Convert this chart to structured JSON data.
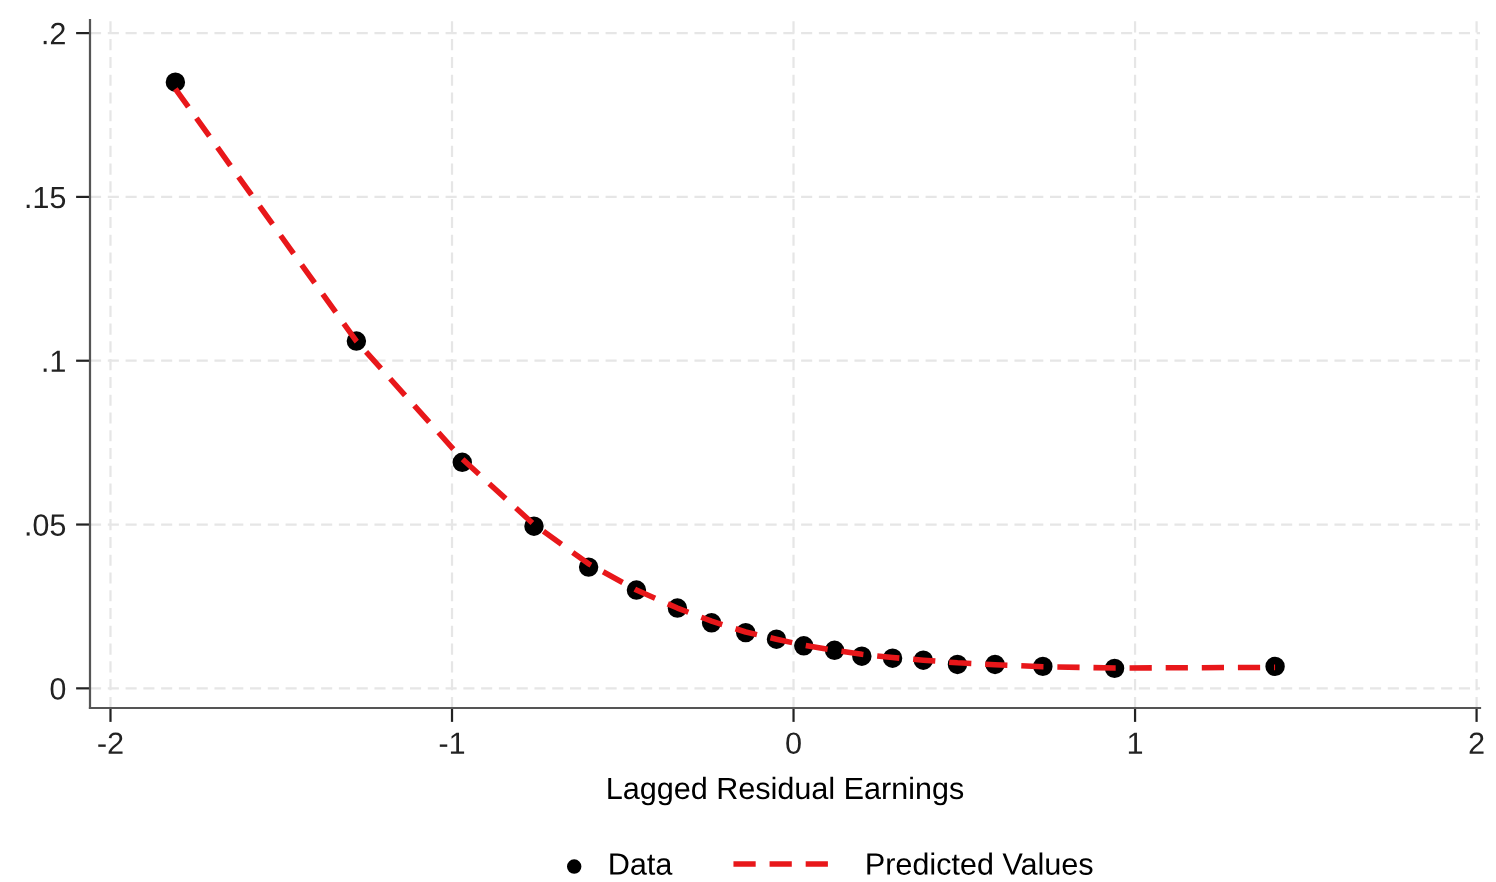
{
  "chart_data": {
    "type": "scatter",
    "xlabel": "Lagged Residual Earnings",
    "series": [
      {
        "name": "Data",
        "type": "scatter",
        "color": "#000000",
        "marker": "circle",
        "x": [
          -1.81,
          -1.28,
          -0.97,
          -0.76,
          -0.6,
          -0.46,
          -0.34,
          -0.24,
          -0.14,
          -0.05,
          0.03,
          0.12,
          0.2,
          0.29,
          0.38,
          0.48,
          0.59,
          0.73,
          0.94,
          1.41
        ],
        "values": [
          0.185,
          0.106,
          0.069,
          0.0495,
          0.037,
          0.03,
          0.0245,
          0.02,
          0.017,
          0.015,
          0.013,
          0.0116,
          0.0098,
          0.0092,
          0.0086,
          0.0073,
          0.0073,
          0.0067,
          0.0061,
          0.0067
        ]
      },
      {
        "name": "Predicted Values",
        "type": "line",
        "color": "#e8171a",
        "line_style": "dashed",
        "marker": "none",
        "x": [
          -1.81,
          -1.28,
          -0.97,
          -0.76,
          -0.6,
          -0.46,
          -0.34,
          -0.24,
          -0.14,
          -0.05,
          0.03,
          0.12,
          0.2,
          0.29,
          0.38,
          0.48,
          0.59,
          0.73,
          0.94,
          1.41
        ],
        "values": [
          0.183,
          0.106,
          0.07,
          0.05,
          0.038,
          0.03,
          0.0245,
          0.0205,
          0.0172,
          0.015,
          0.0132,
          0.0116,
          0.0104,
          0.0094,
          0.0086,
          0.0078,
          0.0072,
          0.0066,
          0.0062,
          0.0064
        ]
      }
    ],
    "xlim": [
      -2.06,
      2.01
    ],
    "xticks": [
      -2,
      -1,
      0,
      1,
      2
    ],
    "ylim": [
      -0.006,
      0.204
    ],
    "yticks": [
      {
        "value": 0,
        "label": "0"
      },
      {
        "value": 0.05,
        "label": ".05"
      },
      {
        "value": 0.1,
        "label": ".1"
      },
      {
        "value": 0.15,
        "label": ".15"
      },
      {
        "value": 0.2,
        "label": ".2"
      }
    ],
    "grid": true,
    "legend": "bottom"
  }
}
